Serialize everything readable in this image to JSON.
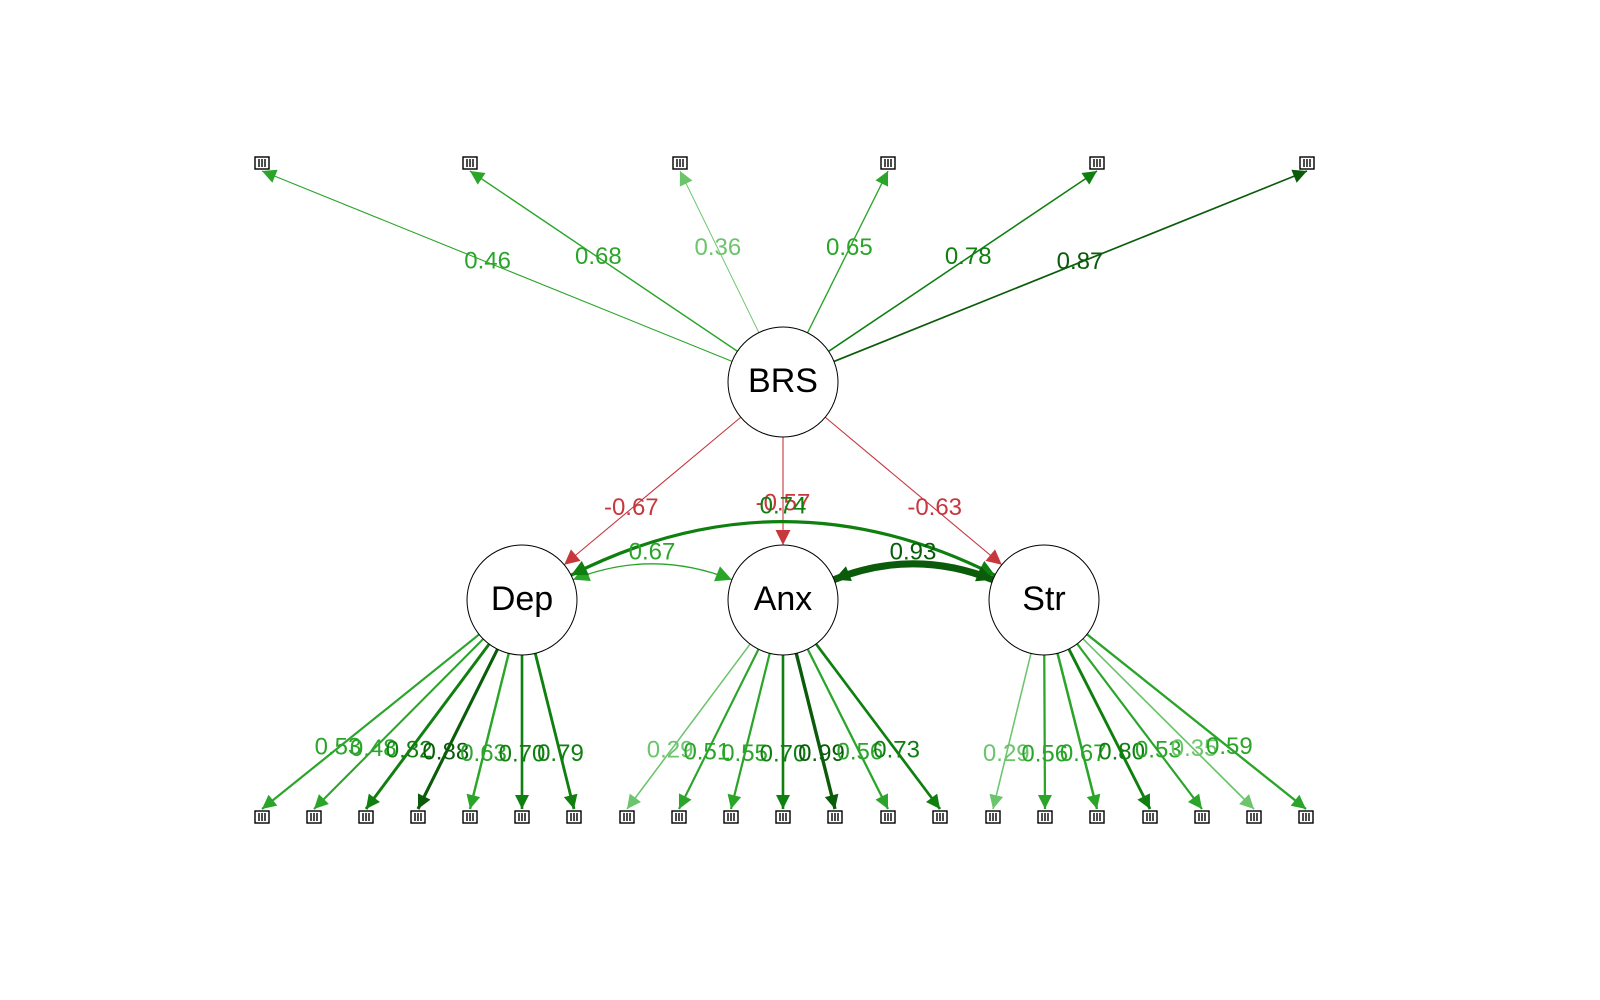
{
  "colors": {
    "negative": "#c6373e",
    "positive_weak": "#6cc46c",
    "positive_mid": "#2aa52a",
    "positive_strong": "#0f7f0f",
    "positive_strongest": "#0a5c0a",
    "node_stroke": "#000000"
  },
  "latents": [
    {
      "id": "BRS",
      "label": "BRS"
    },
    {
      "id": "Dep",
      "label": "Dep"
    },
    {
      "id": "Anx",
      "label": "Anx"
    },
    {
      "id": "Str",
      "label": "Str"
    }
  ],
  "indicator_counts": {
    "BRS": 6,
    "Dep": 7,
    "Anx": 7,
    "Str": 7
  },
  "edges": {
    "brs_loadings": [
      "0.46",
      "0.68",
      "0.36",
      "0.65",
      "0.78",
      "0.87"
    ],
    "dep_loadings": [
      "0.53",
      "0.48",
      "0.82",
      "0.88",
      "0.63",
      "0.70",
      "0.79"
    ],
    "anx_loadings": [
      "0.29",
      "0.51",
      "0.55",
      "0.70",
      "0.99",
      "0.56",
      "0.73"
    ],
    "str_loadings": [
      "0.29",
      "0.56",
      "0.67",
      "0.80",
      "0.53",
      "0.35",
      "0.59"
    ],
    "regressions": [
      {
        "from": "BRS",
        "to": "Dep",
        "label": "-0.67"
      },
      {
        "from": "BRS",
        "to": "Anx",
        "label": "-0.57"
      },
      {
        "from": "BRS",
        "to": "Str",
        "label": "-0.63"
      }
    ],
    "covariances": [
      {
        "between": [
          "Dep",
          "Anx"
        ],
        "label": "0.67"
      },
      {
        "between": [
          "Dep",
          "Str"
        ],
        "label": "0.74"
      },
      {
        "between": [
          "Anx",
          "Str"
        ],
        "label": "0.93"
      }
    ]
  }
}
